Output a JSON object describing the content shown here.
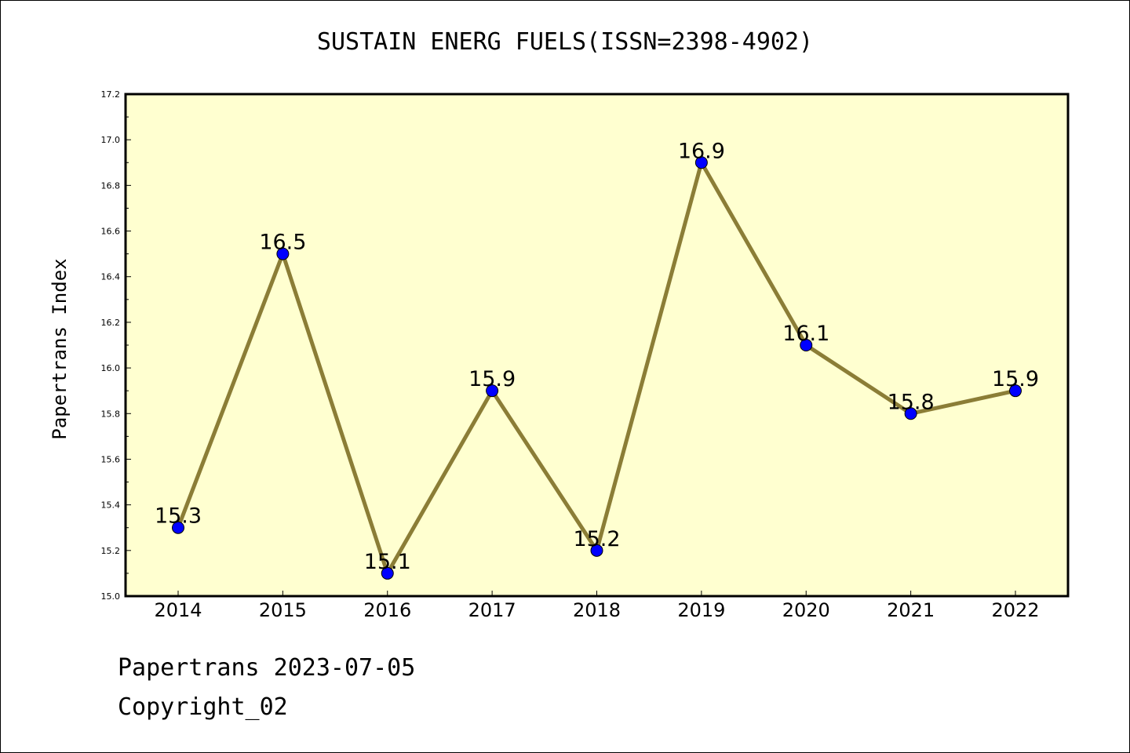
{
  "chart_data": {
    "type": "line",
    "title": "SUSTAIN ENERG FUELS(ISSN=2398-4902)",
    "xlabel": "",
    "ylabel": "Papertrans Index",
    "categories": [
      "2014",
      "2015",
      "2016",
      "2017",
      "2018",
      "2019",
      "2020",
      "2021",
      "2022"
    ],
    "values": [
      15.3,
      16.5,
      15.1,
      15.9,
      15.2,
      16.9,
      16.1,
      15.8,
      15.9
    ],
    "data_labels": [
      "15.3",
      "16.5",
      "15.1",
      "15.9",
      "15.2",
      "16.9",
      "16.1",
      "15.8",
      "15.9"
    ],
    "ylim": [
      15.0,
      17.2
    ],
    "yticks": [
      "15.0",
      "15.2",
      "15.4",
      "15.6",
      "15.8",
      "16.0",
      "16.2",
      "16.4",
      "16.6",
      "16.8",
      "17.0",
      "17.2"
    ],
    "grid": false,
    "colors": {
      "plot_background": "#ffffd0",
      "line": "#8b7d36",
      "marker": "#0000ff"
    }
  },
  "footer": {
    "line1": "Papertrans 2023-07-05",
    "line2": "Copyright_02"
  }
}
